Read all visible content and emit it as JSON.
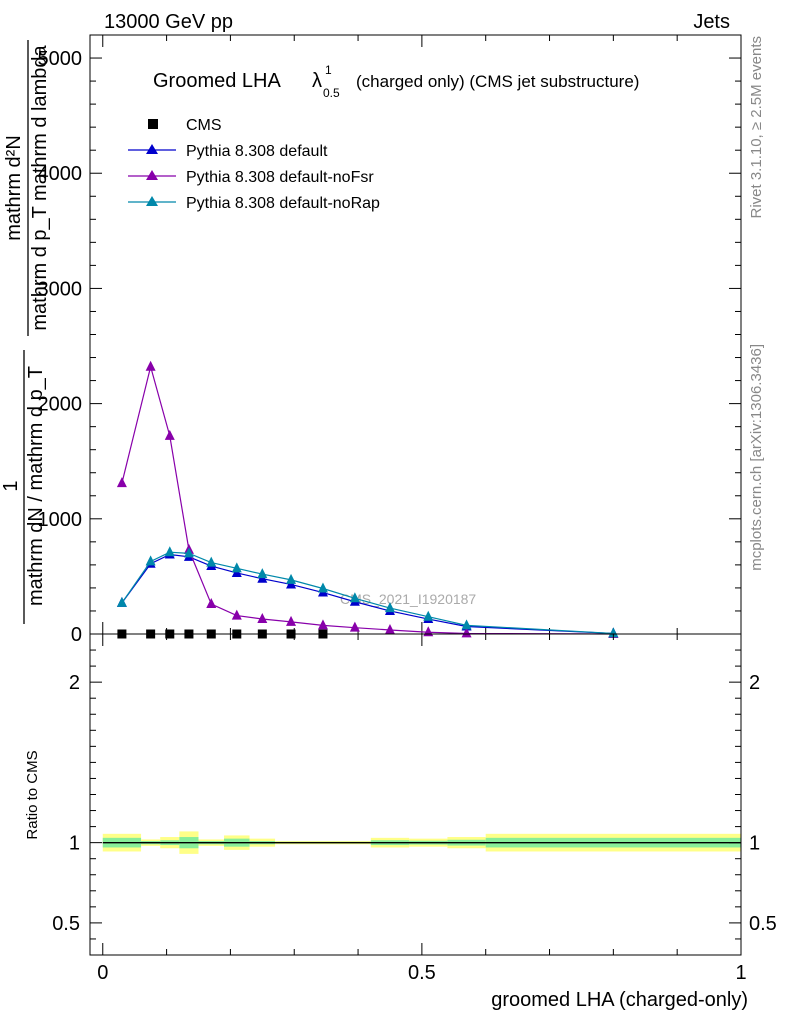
{
  "header": {
    "energy_label": "13000 GeV pp",
    "category_label": "Jets",
    "rivet_label": "Rivet 3.1.10, ≥ 2.5M events",
    "mcplots_label": "mcplots.cern.ch [arXiv:1306.3436]",
    "analysis_watermark": "CMS_2021_I1920187"
  },
  "chart_data": [
    {
      "type": "line",
      "title_main": "Groomed LHA",
      "title_symbol": "λ",
      "title_superscript": "1",
      "title_subscript": "0.5",
      "title_suffix": "(charged only) (CMS jet substructure)",
      "ylabel_top_numerator": "mathrm d²N",
      "ylabel_top_denominator": "mathrm d p_T mathrm d lambda",
      "ylabel_bottom_numerator": "1",
      "ylabel_bottom_denominator": "mathrm dN / mathrm d p_T",
      "xlim": [
        -0.02,
        1.0
      ],
      "ylim": [
        0,
        5200
      ],
      "yticks": [
        {
          "value": 0,
          "label": "0"
        },
        {
          "value": 1000,
          "label": "1000"
        },
        {
          "value": 2000,
          "label": "2000"
        },
        {
          "value": 3000,
          "label": "3000"
        },
        {
          "value": 4000,
          "label": "4000"
        },
        {
          "value": 5000,
          "label": "5000"
        }
      ],
      "legend_position": "top-left",
      "series": [
        {
          "name": "CMS",
          "color": "#000000",
          "marker": "square",
          "x": [
            0.03,
            0.075,
            0.105,
            0.135,
            0.17,
            0.21,
            0.25,
            0.295,
            0.345
          ],
          "y": [
            0,
            0,
            0,
            0,
            0,
            0,
            0,
            0,
            0
          ]
        },
        {
          "name": "Pythia 8.308 default",
          "color": "#0000cc",
          "marker": "triangle",
          "x": [
            0.03,
            0.075,
            0.105,
            0.135,
            0.17,
            0.21,
            0.25,
            0.295,
            0.345,
            0.395,
            0.45,
            0.51,
            0.57,
            0.8
          ],
          "y": [
            270,
            610,
            690,
            670,
            590,
            530,
            480,
            430,
            360,
            280,
            200,
            130,
            65,
            5
          ]
        },
        {
          "name": "Pythia 8.308 default-noFsr",
          "color": "#8800aa",
          "marker": "triangle",
          "x": [
            0.03,
            0.075,
            0.105,
            0.135,
            0.17,
            0.21,
            0.25,
            0.295,
            0.345,
            0.395,
            0.45,
            0.51,
            0.57,
            0.8
          ],
          "y": [
            1310,
            2320,
            1720,
            730,
            260,
            160,
            130,
            105,
            75,
            55,
            35,
            15,
            5,
            0
          ]
        },
        {
          "name": "Pythia 8.308 default-noRap",
          "color": "#0088aa",
          "marker": "triangle",
          "x": [
            0.03,
            0.075,
            0.105,
            0.135,
            0.17,
            0.21,
            0.25,
            0.295,
            0.345,
            0.395,
            0.45,
            0.51,
            0.57,
            0.8
          ],
          "y": [
            270,
            630,
            710,
            700,
            620,
            570,
            520,
            470,
            395,
            310,
            225,
            150,
            75,
            5
          ]
        }
      ]
    },
    {
      "type": "area",
      "ylabel": "Ratio to CMS",
      "xlabel": "groomed LHA (charged-only)",
      "xlim": [
        -0.02,
        1.0
      ],
      "ylim": [
        0.3,
        2.3
      ],
      "xticks": [
        {
          "value": 0,
          "label": "0"
        },
        {
          "value": 0.5,
          "label": "0.5"
        },
        {
          "value": 1,
          "label": "1"
        }
      ],
      "yticks": [
        {
          "value": 0.5,
          "label": "0.5"
        },
        {
          "value": 1,
          "label": "1"
        },
        {
          "value": 2,
          "label": "2"
        }
      ],
      "reference_line": 1,
      "uncertainty_bands": {
        "outer_color": "#ffff88",
        "inner_color": "#88ee99",
        "bins": [
          {
            "x0": 0.0,
            "x1": 0.06,
            "outer": 0.055,
            "inner": 0.03
          },
          {
            "x0": 0.06,
            "x1": 0.09,
            "outer": 0.02,
            "inner": 0.01
          },
          {
            "x0": 0.09,
            "x1": 0.12,
            "outer": 0.035,
            "inner": 0.015
          },
          {
            "x0": 0.12,
            "x1": 0.15,
            "outer": 0.07,
            "inner": 0.035
          },
          {
            "x0": 0.15,
            "x1": 0.19,
            "outer": 0.02,
            "inner": 0.01
          },
          {
            "x0": 0.19,
            "x1": 0.23,
            "outer": 0.045,
            "inner": 0.025
          },
          {
            "x0": 0.23,
            "x1": 0.27,
            "outer": 0.025,
            "inner": 0.01
          },
          {
            "x0": 0.27,
            "x1": 0.42,
            "outer": 0.01,
            "inner": 0.005
          },
          {
            "x0": 0.42,
            "x1": 0.48,
            "outer": 0.03,
            "inner": 0.015
          },
          {
            "x0": 0.48,
            "x1": 0.54,
            "outer": 0.025,
            "inner": 0.012
          },
          {
            "x0": 0.54,
            "x1": 0.6,
            "outer": 0.035,
            "inner": 0.018
          },
          {
            "x0": 0.6,
            "x1": 1.0,
            "outer": 0.055,
            "inner": 0.03
          }
        ]
      }
    }
  ]
}
